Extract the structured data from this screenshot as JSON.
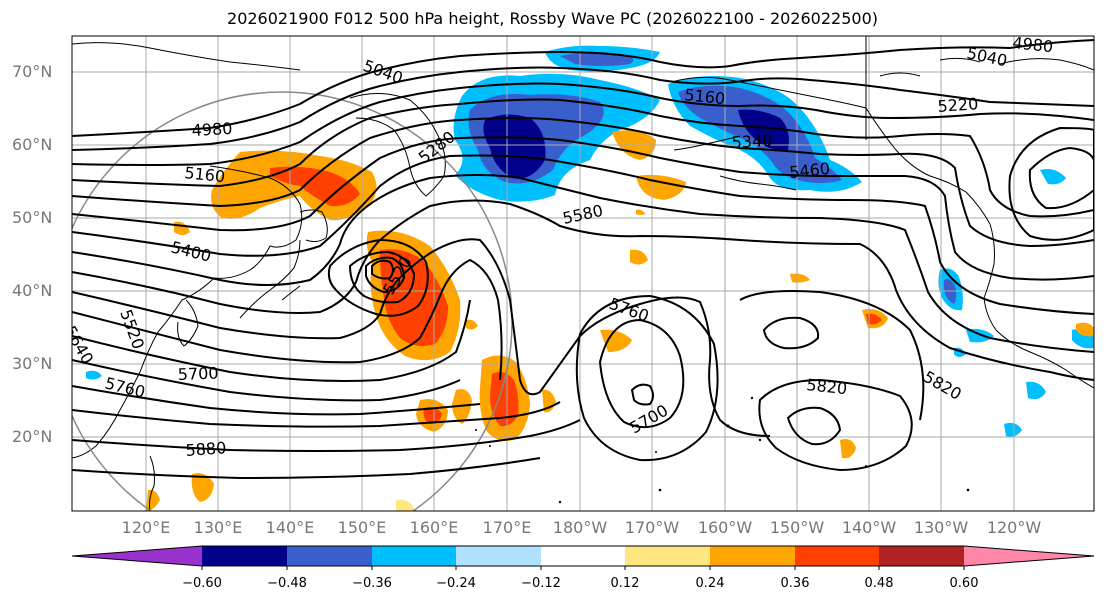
{
  "title": "2026021900 F012 500 hPa height, Rossby Wave PC (2026022100 - 2026022500)",
  "lat_labels": [
    "70°N",
    "60°N",
    "50°N",
    "40°N",
    "30°N",
    "20°N"
  ],
  "lon_labels": [
    "120°E",
    "130°E",
    "140°E",
    "150°E",
    "160°E",
    "170°E",
    "180°W",
    "170°W",
    "160°W",
    "150°W",
    "140°W",
    "130°W",
    "120°W"
  ],
  "contour_labels": {
    "c5040_a": "5040",
    "c4980_a": "4980",
    "c5040_b": "5040",
    "c4980_b": "4980",
    "c5160_a": "5160",
    "c5220": "5220",
    "c5280": "5280",
    "c5340": "5340",
    "c5160_b": "5160",
    "c5460": "5460",
    "c5400": "5400",
    "c5580": "5580",
    "c5520_a": "5520",
    "c5760_a": "5760",
    "c5820_a": "5820",
    "c5820_b": "5820",
    "c5700_a": "5700",
    "c5700_b": "5700",
    "c5760_b": "5760",
    "c5880": "5880",
    "c5640": "5640",
    "c5520_b": "5520"
  },
  "colorbar": {
    "ticks": [
      "−0.60",
      "−0.48",
      "−0.36",
      "−0.24",
      "−0.12",
      "0.12",
      "0.24",
      "0.36",
      "0.48",
      "0.60"
    ],
    "colors": [
      "#9932cc",
      "#00008b",
      "#3a5fcd",
      "#00bfff",
      "#b0e2ff",
      "#ffffff",
      "#ffe680",
      "#ffa500",
      "#ff4000",
      "#b22222",
      "#ff88aa"
    ]
  },
  "colors": {
    "strong_neg": "#00008b",
    "neg": "#3a5fcd",
    "weak_neg": "#00bfff",
    "faint_neg": "#b0e2ff",
    "faint_pos": "#ffe680",
    "pos": "#ffa500",
    "strong_pos": "#ff4000",
    "very_pos": "#b22222"
  }
}
